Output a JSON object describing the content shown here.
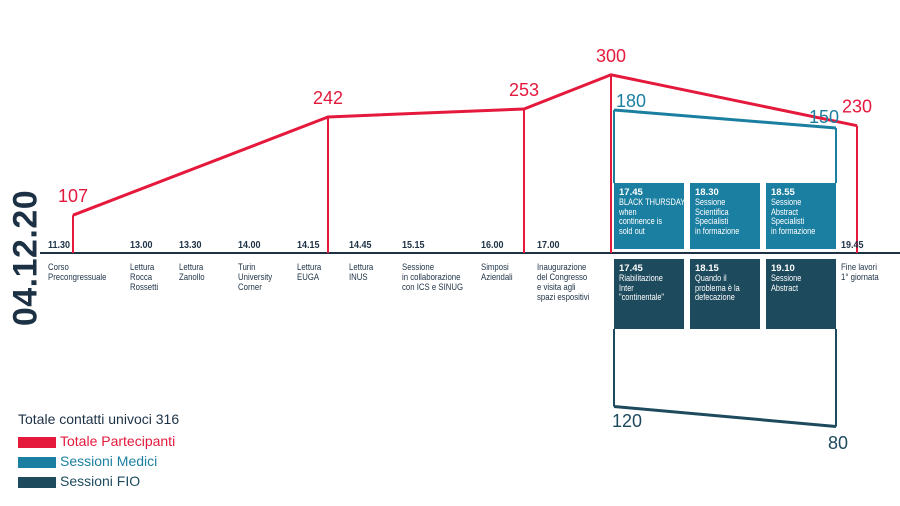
{
  "colors": {
    "totale": "#e4193c",
    "medici": "#1b7fa1",
    "fio": "#1d4a5d",
    "text": "#1d3145"
  },
  "date_label": "04.12.20",
  "schedule": [
    {
      "time": "11.30",
      "lines": [
        "Corso",
        "Precongressuale"
      ]
    },
    {
      "time": "13.00",
      "lines": [
        "Lettura",
        "Rocca",
        "Rossetti"
      ]
    },
    {
      "time": "13.30",
      "lines": [
        "Lettura",
        "Zanollo"
      ]
    },
    {
      "time": "14.00",
      "lines": [
        "Turin",
        "University",
        "Corner"
      ]
    },
    {
      "time": "14.15",
      "lines": [
        "Lettura",
        "EUGA"
      ]
    },
    {
      "time": "14.45",
      "lines": [
        "Lettura",
        "INUS"
      ]
    },
    {
      "time": "15.15",
      "lines": [
        "Sessione",
        "in collaborazione",
        "con ICS e SINUG"
      ]
    },
    {
      "time": "16.00",
      "lines": [
        "Simposi",
        "Aziendali"
      ]
    },
    {
      "time": "17.00",
      "lines": [
        "Inaugurazione",
        "del Congresso",
        "e visita agli",
        "spazi espositivi"
      ]
    },
    {
      "time": "19.45",
      "lines": [
        "Fine lavori",
        "1° giornata"
      ]
    }
  ],
  "sessions_medici": [
    {
      "time": "17.45",
      "lines": [
        "BLACK THURSDAY:",
        "when",
        "continence is",
        "sold out"
      ]
    },
    {
      "time": "18.30",
      "lines": [
        "Sessione",
        "Scientifica",
        "Specialisti",
        "in formazione"
      ]
    },
    {
      "time": "18.55",
      "lines": [
        "Sessione",
        "Abstract",
        "Specialisti",
        "in formazione"
      ]
    }
  ],
  "sessions_fio": [
    {
      "time": "17.45",
      "lines": [
        "Riabilitazione",
        "Inter",
        "\"continentale\""
      ]
    },
    {
      "time": "18.15",
      "lines": [
        "Quando il",
        "problema è la",
        "defecazione"
      ]
    },
    {
      "time": "19.10",
      "lines": [
        "Sessione",
        "Abstract"
      ]
    }
  ],
  "chart_data": {
    "type": "line",
    "series": [
      {
        "name": "Totale Partecipanti",
        "values": [
          107,
          242,
          253,
          300,
          230
        ],
        "at": [
          "11.30",
          "14.15",
          "17.00",
          "17.45",
          "19.45"
        ]
      },
      {
        "name": "Sessioni Medici",
        "values": [
          180,
          150
        ],
        "at": [
          "17.45",
          "19.10"
        ]
      },
      {
        "name": "Sessioni FIO",
        "values": [
          120,
          80
        ],
        "at": [
          "17.45",
          "19.10"
        ]
      }
    ],
    "legend": {
      "title": "Totale contatti univoci 316",
      "placement": "bottom-left"
    }
  }
}
